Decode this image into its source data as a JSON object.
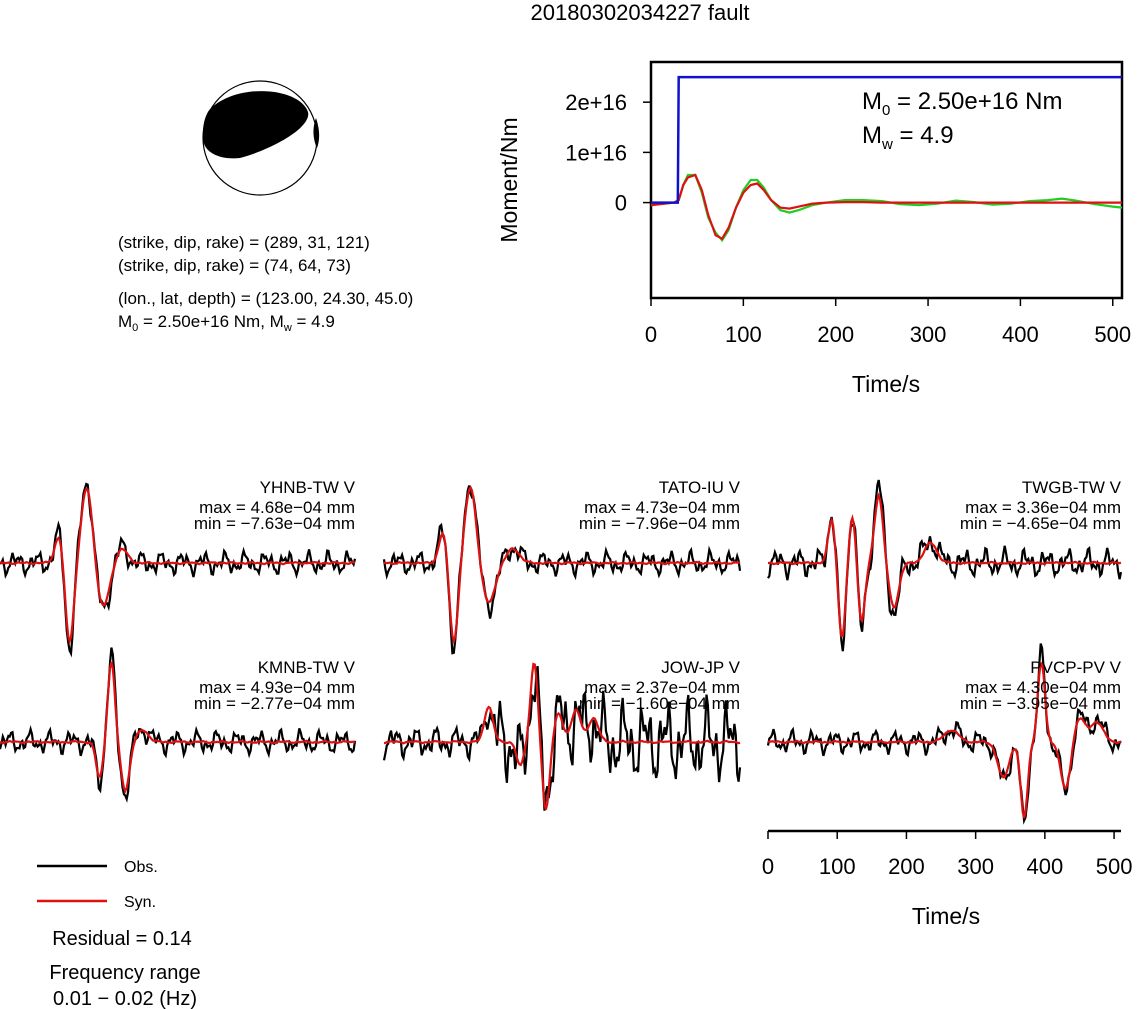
{
  "title": "20180302034227 fault",
  "focal_mechanism": {
    "planes": [
      {
        "label": "(strike, dip, rake) = (289, 31, 121)"
      },
      {
        "label": "(strike, dip, rake) = (74, 64, 73)"
      }
    ],
    "location_label": "(lon., lat, depth) = (123.00, 24.30, 45.0)",
    "moment_label": "M₀ = 2.50e+16 Nm, Mw = 4.9",
    "moment_prefix": "M",
    "moment_rest": " = 2.50e+16 Nm, M",
    "moment_w_rest": " = 4.9"
  },
  "colors": {
    "observed": "#000000",
    "synthetic": "#dd1111",
    "cumulative_moment": "#1111cc",
    "moment_rate": "#22cc22"
  },
  "chart_data": [
    {
      "id": "moment-function",
      "type": "line",
      "xlabel": "Time/s",
      "ylabel": "Moment/Nm",
      "xlim": [
        0,
        510
      ],
      "ylim": [
        -1.9e+16,
        2.8e+16
      ],
      "xticks": [
        0,
        100,
        200,
        300,
        400,
        500
      ],
      "xtick_labels": [
        "0",
        "100",
        "200",
        "300",
        "400",
        "500"
      ],
      "yticks": [
        0,
        1e+16,
        2e+16
      ],
      "ytick_labels": [
        "0",
        "1e+16",
        "2e+16"
      ],
      "annotation_m0": "M₀ = 2.50e+16 Nm",
      "annotation_m0_prefix": "M",
      "annotation_m0_sub": "0",
      "annotation_m0_rest": " = 2.50e+16 Nm",
      "annotation_mw_prefix": "M",
      "annotation_mw_sub": "w",
      "annotation_mw_rest": " = 4.9",
      "series": [
        {
          "key": "cumulative",
          "x": [
            0,
            29,
            30,
            510
          ],
          "y": [
            0,
            0,
            2.5e+16,
            2.5e+16
          ]
        },
        {
          "key": "observed",
          "x": [
            0,
            25,
            30,
            35,
            40,
            48,
            55,
            62,
            70,
            77,
            84,
            92,
            100,
            108,
            115,
            122,
            130,
            140,
            150,
            160,
            175,
            190,
            210,
            230,
            250,
            270,
            290,
            310,
            330,
            350,
            370,
            390,
            410,
            430,
            445,
            460,
            480,
            500,
            510
          ],
          "y": [
            -500000000000000.0,
            0,
            500000000000000.0,
            3500000000000000.0,
            5500000000000000.0,
            5500000000000000.0,
            2000000000000000.0,
            -3000000000000000.0,
            -6000000000000000.0,
            -7500000000000000.0,
            -5500000000000000.0,
            -1000000000000000.0,
            2500000000000000.0,
            4500000000000000.0,
            4500000000000000.0,
            3000000000000000.0,
            500000000000000.0,
            -1500000000000000.0,
            -2000000000000000.0,
            -1500000000000000.0,
            -500000000000000.0,
            0.0,
            500000000000000.0,
            500000000000000.0,
            300000000000000.0,
            -300000000000000.0,
            -500000000000000.0,
            -200000000000000.0,
            400000000000000.0,
            100000000000000.0,
            -400000000000000.0,
            -200000000000000.0,
            300000000000000.0,
            500000000000000.0,
            800000000000000.0,
            400000000000000.0,
            -300000000000000.0,
            -800000000000000.0,
            -1000000000000000.0
          ]
        },
        {
          "key": "synthetic",
          "x": [
            0,
            25,
            30,
            35,
            40,
            48,
            55,
            62,
            70,
            77,
            84,
            92,
            100,
            108,
            115,
            122,
            130,
            140,
            150,
            160,
            175,
            190,
            210,
            230,
            250,
            270,
            290,
            310,
            330,
            350,
            370,
            390,
            410,
            430,
            445,
            460,
            480,
            500,
            510
          ],
          "y": [
            -500000000000000.0,
            0,
            500000000000000.0,
            3500000000000000.0,
            5000000000000000.0,
            5500000000000000.0,
            2500000000000000.0,
            -2500000000000000.0,
            -6500000000000000.0,
            -7200000000000000.0,
            -5000000000000000.0,
            -1000000000000000.0,
            2000000000000000.0,
            3500000000000000.0,
            3800000000000000.0,
            2500000000000000.0,
            500000000000000.0,
            -1000000000000000.0,
            -1200000000000000.0,
            -800000000000000.0,
            -200000000000000.0,
            0.0,
            100000000000000.0,
            100000000000000.0,
            0.0,
            0.0,
            0.0,
            0.0,
            0.0,
            0.0,
            0.0,
            0.0,
            0.0,
            0.0,
            0.0,
            0.0,
            0.0,
            0.0,
            0.0
          ]
        }
      ]
    },
    {
      "id": "waveforms",
      "type": "line",
      "xlabel": "Time/s",
      "xlim": [
        0,
        510
      ],
      "xticks": [
        0,
        100,
        200,
        300,
        400,
        500
      ],
      "xtick_labels": [
        "0",
        "100",
        "200",
        "300",
        "400",
        "500"
      ],
      "legend": [
        {
          "key": "observed",
          "label": "Obs."
        },
        {
          "key": "synthetic",
          "label": "Syn."
        }
      ],
      "residual_label": "Residual = 0.14",
      "freq_label": "Frequency range",
      "freq_value": "0.01 − 0.02 (Hz)",
      "stations": [
        {
          "name": "YHNB-TW V",
          "max": "max = 4.68e−04 mm",
          "min": "min = −7.63e−04 mm"
        },
        {
          "name": "TATO-IU V",
          "max": "max = 4.73e−04 mm",
          "min": "min = −7.96e−04 mm"
        },
        {
          "name": "TWGB-TW V",
          "max": "max = 3.36e−04 mm",
          "min": "min = −4.65e−04 mm"
        },
        {
          "name": "KMNB-TW V",
          "max": "max = 4.93e−04 mm",
          "min": "min = −2.77e−04 mm"
        },
        {
          "name": "JOW-JP V",
          "max": "max = 2.37e−04 mm",
          "min": "min = −1.60e−04 mm"
        },
        {
          "name": "PVCP-PV V",
          "max": "max = 4.30e−04 mm",
          "min": "min = −3.95e−04 mm"
        }
      ]
    }
  ]
}
